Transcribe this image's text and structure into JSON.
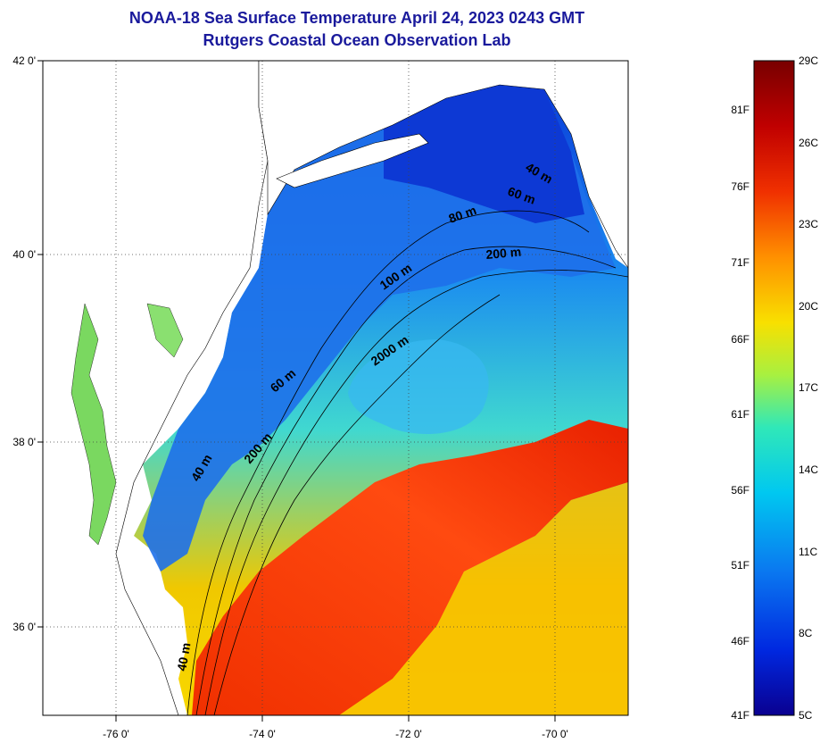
{
  "title": {
    "line1": "NOAA-18 Sea Surface Temperature April 24, 2023 0243 GMT",
    "line2": "Rutgers Coastal Ocean Observation Lab"
  },
  "map": {
    "lat_ticks": [
      {
        "value": 42,
        "label": "42 0'"
      },
      {
        "value": 40,
        "label": "40 0'"
      },
      {
        "value": 38,
        "label": "38 0'"
      },
      {
        "value": 36,
        "label": "36 0'"
      }
    ],
    "lon_ticks": [
      {
        "value": -76,
        "label": "-76 0'"
      },
      {
        "value": -74,
        "label": "-74 0'"
      },
      {
        "value": -72,
        "label": "-72 0'"
      },
      {
        "value": -70,
        "label": "-70 0'"
      }
    ],
    "contour_labels": [
      "40 m",
      "60 m",
      "80 m",
      "200 m",
      "100 m",
      "2000 m",
      "60 m",
      "200 m",
      "40 m",
      "40 m"
    ]
  },
  "colorbar": {
    "celsius_labels": [
      "29C",
      "26C",
      "23C",
      "20C",
      "17C",
      "14C",
      "11C",
      "8C",
      "5C"
    ],
    "fahrenheit_labels": [
      "81F",
      "76F",
      "71F",
      "66F",
      "61F",
      "56F",
      "51F",
      "46F",
      "41F"
    ],
    "stops": [
      "#0a0090",
      "#0028e0",
      "#0a78f0",
      "#00c8f0",
      "#30e8b8",
      "#a8f040",
      "#f8e000",
      "#ff9000",
      "#f03000",
      "#c00000",
      "#780000"
    ]
  }
}
